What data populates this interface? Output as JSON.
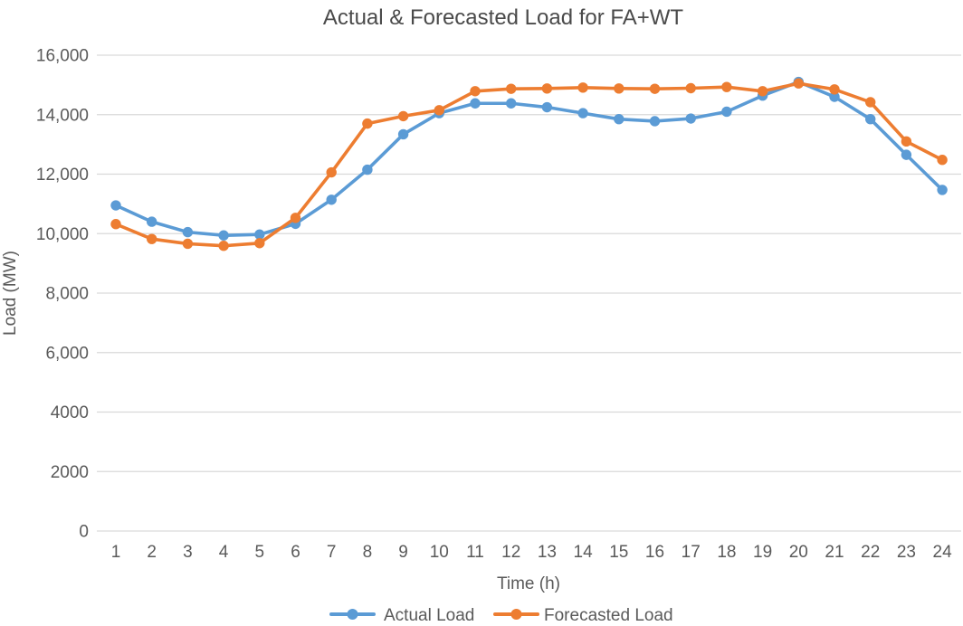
{
  "chart_data": {
    "type": "line",
    "title": "Actual & Forecasted Load for FA+WT",
    "xlabel": "Time (h)",
    "ylabel": "Load (MW)",
    "x": [
      1,
      2,
      3,
      4,
      5,
      6,
      7,
      8,
      9,
      10,
      11,
      12,
      13,
      14,
      15,
      16,
      17,
      18,
      19,
      20,
      21,
      22,
      23,
      24
    ],
    "series": [
      {
        "name": "Actual Load",
        "color": "#5B9BD5",
        "values": [
          10950,
          10400,
          10050,
          9940,
          9970,
          10330,
          11140,
          12150,
          13340,
          14050,
          14380,
          14380,
          14250,
          14050,
          13850,
          13780,
          13870,
          14100,
          14640,
          15100,
          14600,
          13850,
          12650,
          11470
        ]
      },
      {
        "name": "Forecasted Load",
        "color": "#ED7D31",
        "values": [
          10320,
          9820,
          9660,
          9590,
          9680,
          10530,
          12060,
          13700,
          13950,
          14150,
          14790,
          14870,
          14880,
          14910,
          14880,
          14870,
          14890,
          14930,
          14790,
          15050,
          14850,
          14420,
          13100,
          12480
        ]
      }
    ],
    "ylim": [
      0,
      16000
    ],
    "yticks": [
      0,
      2000,
      4000,
      6000,
      8000,
      10000,
      12000,
      14000,
      16000
    ],
    "ytick_labels": [
      "0",
      "2000",
      "4000",
      "6,000",
      "8,000",
      "10,000",
      "12,000",
      "14,000",
      "16,000"
    ],
    "grid": "horizontal",
    "legend_position": "bottom",
    "marker": "circle"
  },
  "colors": {
    "grid": "#D9D9D9",
    "background": "#FFFFFF",
    "tick_text": "#5A5A5A",
    "title_text": "#4A4A4A"
  }
}
